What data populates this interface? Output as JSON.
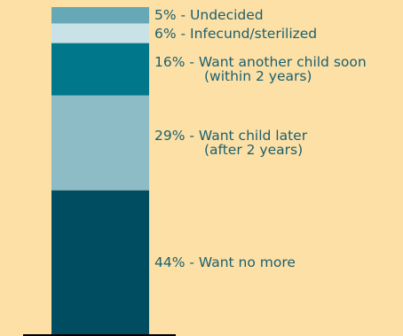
{
  "chart_data": {
    "type": "bar",
    "stacked": true,
    "title": "",
    "xlabel": "",
    "ylabel": "",
    "ylim": [
      0,
      100
    ],
    "segments": [
      {
        "value": 44,
        "label_line1": "44% - Want no more",
        "label_line2": "",
        "color": "#004d62"
      },
      {
        "value": 29,
        "label_line1": "29% - Want child later",
        "label_line2": "(after 2 years)",
        "color": "#8dbcc7"
      },
      {
        "value": 16,
        "label_line1": "16% - Want another child soon",
        "label_line2": "(within 2 years)",
        "color": "#00778b"
      },
      {
        "value": 6,
        "label_line1": "6% - Infecund/sterilized",
        "label_line2": "",
        "color": "#c9e2e7"
      },
      {
        "value": 5,
        "label_line1": "5% - Undecided",
        "label_line2": "",
        "color": "#66a8b6"
      }
    ],
    "baseline_color": "#000000"
  }
}
